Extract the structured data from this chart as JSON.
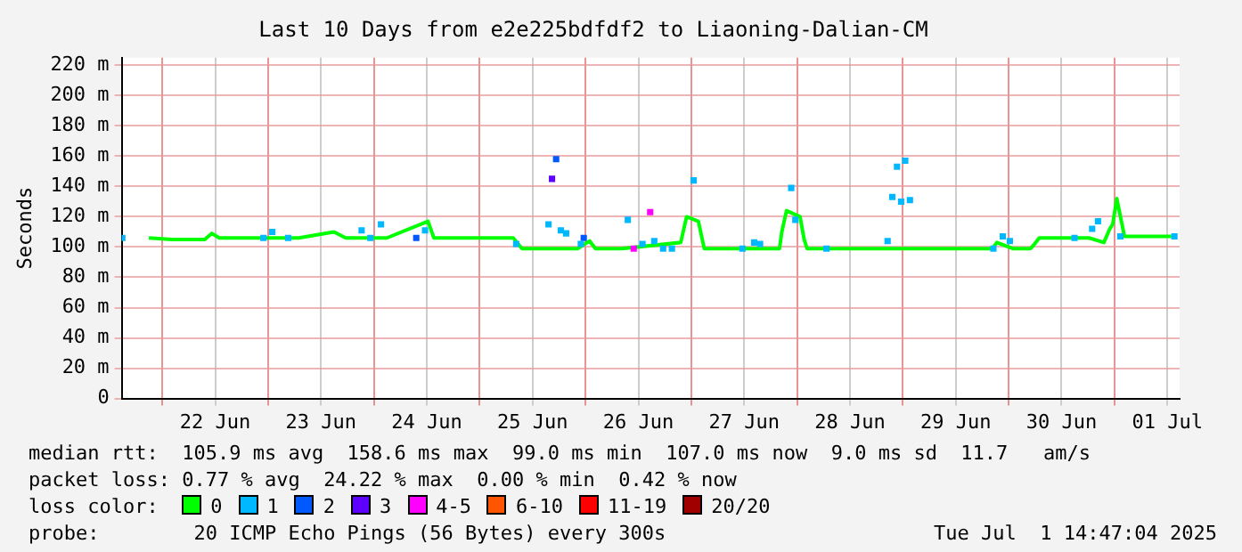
{
  "chart_data": {
    "type": "line",
    "title": "Last 10 Days from e2e225bdfdf2 to Liaoning-Dalian-CM",
    "ylabel": "Seconds",
    "xlim": [
      "2025-06-21T14:47",
      "2025-07-01T14:47"
    ],
    "xticks": [
      {
        "value": "2025-06-22T00:00",
        "label": null
      },
      {
        "value": "2025-06-22T12:00",
        "label": "22 Jun"
      },
      {
        "value": "2025-06-23T00:00",
        "label": null
      },
      {
        "value": "2025-06-23T12:00",
        "label": "23 Jun"
      },
      {
        "value": "2025-06-24T00:00",
        "label": null
      },
      {
        "value": "2025-06-24T12:00",
        "label": "24 Jun"
      },
      {
        "value": "2025-06-25T00:00",
        "label": null
      },
      {
        "value": "2025-06-25T12:00",
        "label": "25 Jun"
      },
      {
        "value": "2025-06-26T00:00",
        "label": null
      },
      {
        "value": "2025-06-26T12:00",
        "label": "26 Jun"
      },
      {
        "value": "2025-06-27T00:00",
        "label": null
      },
      {
        "value": "2025-06-27T12:00",
        "label": "27 Jun"
      },
      {
        "value": "2025-06-28T00:00",
        "label": null
      },
      {
        "value": "2025-06-28T12:00",
        "label": "28 Jun"
      },
      {
        "value": "2025-06-29T00:00",
        "label": null
      },
      {
        "value": "2025-06-29T12:00",
        "label": "29 Jun"
      },
      {
        "value": "2025-06-30T00:00",
        "label": null
      },
      {
        "value": "2025-06-30T12:00",
        "label": "30 Jun"
      },
      {
        "value": "2025-07-01T00:00",
        "label": null
      },
      {
        "value": "2025-07-01T12:00",
        "label": "01 Jul"
      }
    ],
    "ylim": [
      0,
      225
    ],
    "yticks": [
      0,
      {
        "value": 20,
        "label": "20 m"
      },
      {
        "value": 40,
        "label": "40 m"
      },
      {
        "value": 60,
        "label": "60 m"
      },
      {
        "value": 80,
        "label": "80 m"
      },
      {
        "value": 100,
        "label": "100 m"
      },
      {
        "value": 120,
        "label": "120 m"
      },
      {
        "value": 140,
        "label": "140 m"
      },
      {
        "value": 160,
        "label": "160 m"
      },
      {
        "value": 180,
        "label": "180 m"
      },
      {
        "value": 200,
        "label": "200 m"
      },
      {
        "value": 220,
        "label": "220 m"
      }
    ],
    "grid": true,
    "legend": "bottom",
    "legend_title": "loss color:",
    "series": [
      {
        "name": "0",
        "color": "#00ff00",
        "marker": "none",
        "line_style": "solid",
        "x": [
          "2025-06-21T20:56",
          "2025-06-22T02:16",
          "2025-06-22T09:36",
          "2025-06-22T11:12",
          "2025-06-22T12:56",
          "2025-06-23T01:52",
          "2025-06-23T06:56",
          "2025-06-23T14:56",
          "2025-06-23T17:36",
          "2025-06-24T02:56",
          "2025-06-24T12:16",
          "2025-06-24T13:36",
          "2025-06-24T22:56",
          "2025-06-25T07:36",
          "2025-06-25T09:36",
          "2025-06-25T14:56",
          "2025-06-25T20:32",
          "2025-06-25T22:16",
          "2025-06-26T00:56",
          "2025-06-26T02:16",
          "2025-06-26T08:16",
          "2025-06-26T21:36",
          "2025-06-26T22:56",
          "2025-06-27T01:36",
          "2025-06-27T02:56",
          "2025-06-27T10:56",
          "2025-06-27T17:36",
          "2025-06-27T20:00",
          "2025-06-27T20:32",
          "2025-06-27T21:36",
          "2025-06-28T00:40",
          "2025-06-28T01:36",
          "2025-06-28T02:16",
          "2025-06-28T08:16",
          "2025-06-28T19:36",
          "2025-06-29T02:16",
          "2025-06-29T20:16",
          "2025-06-29T21:20",
          "2025-06-30T00:56",
          "2025-06-30T04:56",
          "2025-06-30T05:36",
          "2025-06-30T06:56",
          "2025-06-30T14:16",
          "2025-06-30T18:16",
          "2025-06-30T21:36",
          "2025-06-30T22:56",
          "2025-06-30T23:36",
          "2025-07-01T00:32",
          "2025-07-01T02:16",
          "2025-07-01T12:56"
        ],
        "values": [
          106,
          105,
          105,
          109,
          106,
          106,
          106,
          110,
          106,
          106,
          117,
          106,
          106,
          106,
          99,
          99,
          99,
          99,
          104,
          99,
          99,
          103,
          120,
          117,
          99,
          99,
          99,
          99,
          110,
          124,
          120,
          105,
          99,
          99,
          99,
          99,
          99,
          103,
          99,
          99,
          101,
          106,
          106,
          106,
          103,
          112,
          115,
          132,
          107,
          107
        ]
      },
      {
        "name": "1",
        "color": "#00b8ff",
        "type": "scatter",
        "marker": "square",
        "x": [
          "2025-06-21T14:55",
          "2025-06-22T22:56",
          "2025-06-23T00:56",
          "2025-06-23T04:32",
          "2025-06-23T21:12",
          "2025-06-23T23:12",
          "2025-06-24T01:36",
          "2025-06-24T11:36",
          "2025-06-25T08:16",
          "2025-06-25T15:36",
          "2025-06-25T18:24",
          "2025-06-25T19:36",
          "2025-06-25T22:56",
          "2025-06-26T09:36",
          "2025-06-26T12:56",
          "2025-06-26T15:36",
          "2025-06-26T17:36",
          "2025-06-26T19:36",
          "2025-06-27T00:32",
          "2025-06-27T11:36",
          "2025-06-27T14:16",
          "2025-06-27T15:36",
          "2025-06-27T22:40",
          "2025-06-27T23:36",
          "2025-06-28T06:40",
          "2025-06-28T20:32",
          "2025-06-28T21:36",
          "2025-06-28T22:40",
          "2025-06-28T23:36",
          "2025-06-29T00:32",
          "2025-06-29T01:36",
          "2025-06-29T20:32",
          "2025-06-29T22:40",
          "2025-06-30T00:16",
          "2025-06-30T14:56",
          "2025-06-30T18:56",
          "2025-06-30T20:16",
          "2025-07-01T01:20",
          "2025-07-01T13:36"
        ],
        "values": [
          106,
          106,
          110,
          106,
          111,
          106,
          115,
          111,
          102,
          115,
          111,
          109,
          102,
          118,
          102,
          104,
          99,
          99,
          144,
          99,
          103,
          102,
          139,
          118,
          99,
          104,
          133,
          153,
          130,
          157,
          131,
          99,
          107,
          104,
          106,
          112,
          117,
          107,
          107
        ]
      },
      {
        "name": "2",
        "color": "#0059ff",
        "type": "scatter",
        "marker": "square",
        "x": [
          "2025-06-24T09:36",
          "2025-06-25T17:20",
          "2025-06-25T23:36"
        ],
        "values": [
          106,
          158,
          106
        ]
      },
      {
        "name": "3",
        "color": "#5e00ff",
        "type": "scatter",
        "marker": "square",
        "x": [
          "2025-06-25T16:24"
        ],
        "values": [
          145
        ]
      },
      {
        "name": "4-5",
        "color": "#ff00ff",
        "type": "scatter",
        "marker": "square",
        "x": [
          "2025-06-26T10:56",
          "2025-06-26T14:40"
        ],
        "values": [
          99,
          123
        ]
      },
      {
        "name": "6-10",
        "color": "#ff5500",
        "type": "scatter",
        "marker": "square"
      },
      {
        "name": "11-19",
        "color": "#ff0000",
        "type": "scatter",
        "marker": "square"
      },
      {
        "name": "20/20",
        "color": "#a10000",
        "type": "scatter",
        "marker": "square"
      }
    ],
    "annotations": [
      "median rtt:  105.9 ms avg  158.6 ms max  99.0 ms min  107.0 ms now  9.0 ms sd  11.7   am/s",
      "packet loss: 0.77 % avg  24.22 % max  0.00 % min  0.42 % now",
      "probe:        20 ICMP Echo Pings (56 Bytes) every 300s",
      "Tue Jul  1 14:47:04 2025"
    ]
  }
}
